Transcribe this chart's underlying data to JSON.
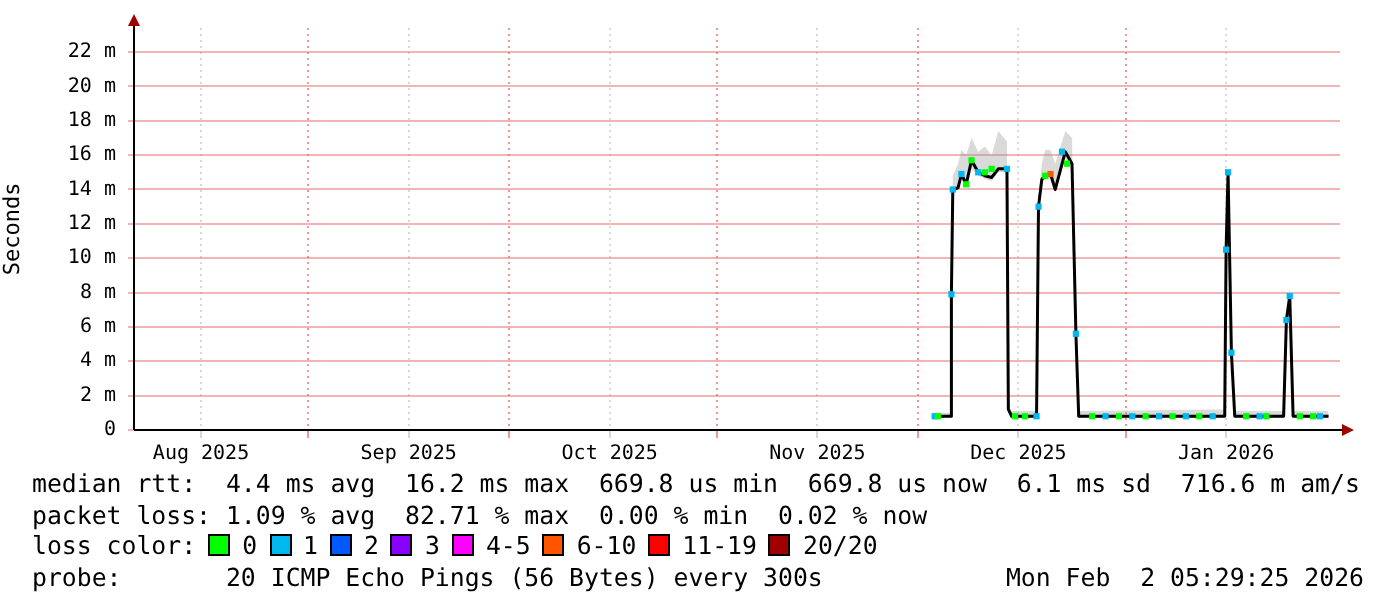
{
  "chart_data": {
    "type": "line",
    "ylabel": "Seconds",
    "legend_title": "loss color:",
    "legend": "bottom",
    "grid": true,
    "marker": "square",
    "xlim": [
      "2025-08-06",
      "2026-02-02"
    ],
    "xticks": [
      {
        "value": "2025-08-16",
        "label": "Aug 2025"
      },
      {
        "value": "2025-09-01",
        "label": null
      },
      {
        "value": "2025-09-16",
        "label": "Sep 2025"
      },
      {
        "value": "2025-10-01",
        "label": null
      },
      {
        "value": "2025-10-16",
        "label": "Oct 2025"
      },
      {
        "value": "2025-11-01",
        "label": null
      },
      {
        "value": "2025-11-16",
        "label": "Nov 2025"
      },
      {
        "value": "2025-12-01",
        "label": null
      },
      {
        "value": "2025-12-16",
        "label": "Dec 2025"
      },
      {
        "value": "2026-01-01",
        "label": null
      },
      {
        "value": "2026-01-16",
        "label": "Jan 2026"
      }
    ],
    "ylim": [
      0,
      23.4
    ],
    "yticks": [
      0,
      {
        "value": 2,
        "label": "2 m"
      },
      {
        "value": 4,
        "label": "4 m"
      },
      {
        "value": 6,
        "label": "6 m"
      },
      {
        "value": 8,
        "label": "8 m"
      },
      {
        "value": 10,
        "label": "10 m"
      },
      {
        "value": 12,
        "label": "12 m"
      },
      {
        "value": 14,
        "label": "14 m"
      },
      {
        "value": 16,
        "label": "16 m"
      },
      {
        "value": 18,
        "label": "18 m"
      },
      {
        "value": 20,
        "label": "20 m"
      },
      {
        "value": 22,
        "label": "22 m"
      }
    ],
    "x": [
      "2025-12-03T05:00",
      "2025-12-05T19:00",
      "2025-12-06T00:00",
      "2025-12-06T05:00",
      "2025-12-07T00:00",
      "2025-12-07T12:00",
      "2025-12-08T05:00",
      "2025-12-09T00:00",
      "2025-12-10T00:00",
      "2025-12-11T00:00",
      "2025-12-12T00:00",
      "2025-12-13T00:00",
      "2025-12-14T07:00",
      "2025-12-14T12:00",
      "2025-12-15T00:00",
      "2025-12-18T17:00",
      "2025-12-19T00:00",
      "2025-12-19T12:00",
      "2025-12-20T00:00",
      "2025-12-20T19:00",
      "2025-12-21T12:00",
      "2025-12-23T00:00",
      "2025-12-24T00:00",
      "2025-12-24T14:00",
      "2025-12-25T00:00",
      "2026-01-15T19:00",
      "2026-01-16T00:00",
      "2026-01-16T07:00",
      "2026-01-16T19:00",
      "2026-01-17T07:00",
      "2026-01-24T14:00",
      "2026-01-25T00:00",
      "2026-01-25T12:00",
      "2026-01-26T00:00",
      "2026-01-31T07:00"
    ],
    "series": [
      {
        "color": "#000000",
        "marker": "none",
        "values": [
          0.8,
          0.8,
          7.9,
          14.0,
          14.1,
          14.9,
          14.3,
          15.7,
          15.0,
          14.8,
          14.7,
          15.2,
          15.2,
          1.2,
          0.8,
          0.8,
          13.0,
          14.6,
          14.8,
          14.9,
          14.0,
          16.2,
          15.5,
          5.6,
          0.8,
          0.8,
          10.5,
          15.0,
          4.5,
          0.8,
          0.8,
          6.4,
          7.8,
          0.8,
          0.8
        ],
        "lower": [
          0.7,
          0.7,
          7.8,
          13.9,
          14.0,
          14.6,
          14.1,
          15.2,
          14.8,
          14.6,
          14.5,
          15.0,
          15.0,
          1.1,
          0.7,
          0.7,
          12.9,
          14.4,
          14.6,
          14.6,
          13.8,
          15.8,
          15.2,
          5.5,
          0.7,
          0.7,
          10.4,
          14.8,
          4.4,
          0.7,
          0.7,
          6.3,
          7.6,
          0.7,
          0.7
        ],
        "upper": [
          1.0,
          1.0,
          8.2,
          14.8,
          15.5,
          16.3,
          16.0,
          17.0,
          16.2,
          16.5,
          16.0,
          17.4,
          16.8,
          1.5,
          1.1,
          1.1,
          13.6,
          15.5,
          16.3,
          16.3,
          15.5,
          17.4,
          17.0,
          6.0,
          1.1,
          1.2,
          11.0,
          15.5,
          5.0,
          1.1,
          1.1,
          6.6,
          8.3,
          1.1,
          1.1
        ]
      },
      {
        "type": "scatter",
        "name": "0",
        "color": "#00ff00",
        "x": [
          "2025-12-04T00:00",
          "2025-12-08T05:00",
          "2025-12-09T00:00",
          "2025-12-11T00:00",
          "2025-12-12T00:00",
          "2025-12-15T12:00",
          "2025-12-17T00:00",
          "2025-12-20T00:00",
          "2025-12-23T06:00",
          "2025-12-27T00:00",
          "2025-12-31T00:00",
          "2026-01-04T00:00",
          "2026-01-08T00:00",
          "2026-01-12T00:00",
          "2026-01-19T00:00",
          "2026-01-22T00:00",
          "2026-01-27T00:00",
          "2026-01-29T00:00"
        ],
        "values": [
          0.8,
          14.3,
          15.7,
          15.0,
          15.2,
          0.8,
          0.8,
          14.8,
          15.5,
          0.8,
          0.8,
          0.8,
          0.8,
          0.8,
          0.8,
          0.8,
          0.8,
          0.8
        ]
      },
      {
        "type": "scatter",
        "name": "1",
        "color": "#00b7ee",
        "x": [
          "2025-12-03T12:00",
          "2025-12-06T00:00",
          "2025-12-06T05:00",
          "2025-12-07T12:00",
          "2025-12-10T00:00",
          "2025-12-14T07:00",
          "2025-12-18T17:00",
          "2025-12-19T00:00",
          "2025-12-22T12:00",
          "2025-12-24T14:00",
          "2025-12-29T00:00",
          "2026-01-02T00:00",
          "2026-01-06T00:00",
          "2026-01-10T00:00",
          "2026-01-14T00:00",
          "2026-01-16T00:00",
          "2026-01-16T07:00",
          "2026-01-16T19:00",
          "2026-01-21T00:00",
          "2026-01-25T00:00",
          "2026-01-25T12:00",
          "2026-01-30T00:00"
        ],
        "values": [
          0.8,
          7.9,
          14.0,
          14.9,
          15.0,
          15.2,
          0.8,
          13.0,
          16.2,
          5.6,
          0.8,
          0.8,
          0.8,
          0.8,
          0.8,
          10.5,
          15.0,
          4.5,
          0.8,
          6.4,
          7.8,
          0.8
        ]
      },
      {
        "type": "scatter",
        "name": "2",
        "color": "#0059ff",
        "values": [
          null,
          null,
          null,
          null,
          null,
          null,
          null,
          null,
          null,
          null,
          null,
          null,
          null,
          null,
          null,
          null,
          null,
          null,
          null,
          null,
          null,
          null,
          null,
          null,
          null,
          null,
          null,
          null,
          null,
          null,
          null,
          null,
          null,
          null,
          null
        ]
      },
      {
        "type": "scatter",
        "name": "3",
        "color": "#8800ff",
        "values": [
          null,
          null,
          null,
          null,
          null,
          null,
          null,
          null,
          null,
          null,
          null,
          null,
          null,
          null,
          null,
          null,
          null,
          null,
          null,
          null,
          null,
          null,
          null,
          null,
          null,
          null,
          null,
          null,
          null,
          null,
          null,
          null,
          null,
          null,
          null
        ]
      },
      {
        "type": "scatter",
        "name": "4-5",
        "color": "#ff00ff",
        "values": [
          null,
          null,
          null,
          null,
          null,
          null,
          null,
          null,
          null,
          null,
          null,
          null,
          null,
          null,
          null,
          null,
          null,
          null,
          null,
          null,
          null,
          null,
          null,
          null,
          null,
          null,
          null,
          null,
          null,
          null,
          null,
          null,
          null,
          null,
          null
        ]
      },
      {
        "type": "scatter",
        "name": "6-10",
        "color": "#ff5500",
        "x": [
          "2025-12-20T19:00"
        ],
        "values": [
          14.9
        ]
      },
      {
        "type": "scatter",
        "name": "11-19",
        "color": "#ff0000",
        "values": [
          null,
          null,
          null,
          null,
          null,
          null,
          null,
          null,
          null,
          null,
          null,
          null,
          null,
          null,
          null,
          null,
          null,
          null,
          null,
          null,
          null,
          null,
          null,
          null,
          null,
          null,
          null,
          null,
          null,
          null,
          null,
          null,
          null,
          null,
          null
        ]
      },
      {
        "type": "scatter",
        "name": "20/20",
        "color": "#a10000",
        "values": [
          null,
          null,
          null,
          null,
          null,
          null,
          null,
          null,
          null,
          null,
          null,
          null,
          null,
          null,
          null,
          null,
          null,
          null,
          null,
          null,
          null,
          null,
          null,
          null,
          null,
          null,
          null,
          null,
          null,
          null,
          null,
          null,
          null,
          null,
          null
        ]
      }
    ],
    "annotations": [
      "median rtt:  4.4 ms avg  16.2 ms max  669.8 us min  669.8 us now  6.1 ms sd  716.6 m am/s",
      "packet loss: 1.09 % avg  82.71 % max  0.00 % min  0.02 % now",
      "probe:       20 ICMP Echo Pings (56 Bytes) every 300s",
      "Mon Feb  2 05:29:25 2026"
    ]
  }
}
